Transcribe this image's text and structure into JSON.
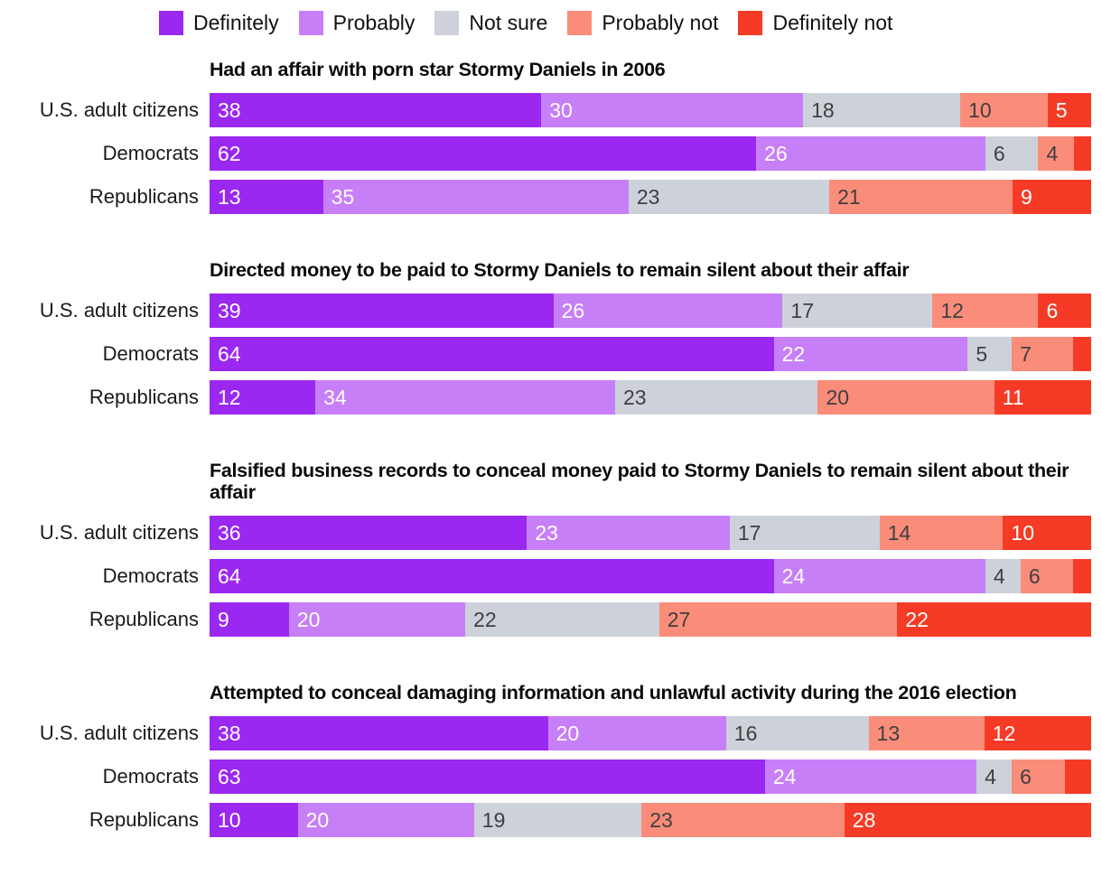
{
  "legend": {
    "items": [
      {
        "label": "Definitely",
        "color": "#9A28F1",
        "text_color": "#ffffff"
      },
      {
        "label": "Probably",
        "color": "#C77FF7",
        "text_color": "#ffffff"
      },
      {
        "label": "Not sure",
        "color": "#CDD1D9",
        "text_color": "#3f3f3f"
      },
      {
        "label": "Probably not",
        "color": "#FA8C7A",
        "text_color": "#3f3f3f"
      },
      {
        "label": "Definitely not",
        "color": "#F53B26",
        "text_color": "#ffffff"
      }
    ]
  },
  "min_label_value": 4,
  "chart_data": [
    {
      "type": "bar",
      "stacked": true,
      "orientation": "horizontal",
      "title": "Had an affair with porn star Stormy Daniels in 2006",
      "series_labels": [
        "Definitely",
        "Probably",
        "Not sure",
        "Probably not",
        "Definitely not"
      ],
      "rows": [
        {
          "label": "U.S. adult citizens",
          "values": [
            38,
            30,
            18,
            10,
            5
          ]
        },
        {
          "label": "Democrats",
          "values": [
            62,
            26,
            6,
            4,
            2
          ]
        },
        {
          "label": "Republicans",
          "values": [
            13,
            35,
            23,
            21,
            9
          ]
        }
      ]
    },
    {
      "type": "bar",
      "stacked": true,
      "orientation": "horizontal",
      "title": "Directed money to be paid to Stormy Daniels to remain silent about their affair",
      "series_labels": [
        "Definitely",
        "Probably",
        "Not sure",
        "Probably not",
        "Definitely not"
      ],
      "rows": [
        {
          "label": "U.S. adult citizens",
          "values": [
            39,
            26,
            17,
            12,
            6
          ]
        },
        {
          "label": "Democrats",
          "values": [
            64,
            22,
            5,
            7,
            2
          ]
        },
        {
          "label": "Republicans",
          "values": [
            12,
            34,
            23,
            20,
            11
          ]
        }
      ]
    },
    {
      "type": "bar",
      "stacked": true,
      "orientation": "horizontal",
      "title": "Falsified business records to conceal money paid to Stormy Daniels to remain silent about their affair",
      "series_labels": [
        "Definitely",
        "Probably",
        "Not sure",
        "Probably not",
        "Definitely not"
      ],
      "rows": [
        {
          "label": "U.S. adult citizens",
          "values": [
            36,
            23,
            17,
            14,
            10
          ]
        },
        {
          "label": "Democrats",
          "values": [
            64,
            24,
            4,
            6,
            2
          ]
        },
        {
          "label": "Republicans",
          "values": [
            9,
            20,
            22,
            27,
            22
          ]
        }
      ]
    },
    {
      "type": "bar",
      "stacked": true,
      "orientation": "horizontal",
      "title": "Attempted to conceal damaging information and unlawful activity during the 2016 election",
      "series_labels": [
        "Definitely",
        "Probably",
        "Not sure",
        "Probably not",
        "Definitely not"
      ],
      "rows": [
        {
          "label": "U.S. adult citizens",
          "values": [
            38,
            20,
            16,
            13,
            12
          ]
        },
        {
          "label": "Democrats",
          "values": [
            63,
            24,
            4,
            6,
            3
          ]
        },
        {
          "label": "Republicans",
          "values": [
            10,
            20,
            19,
            23,
            28
          ]
        }
      ]
    }
  ]
}
